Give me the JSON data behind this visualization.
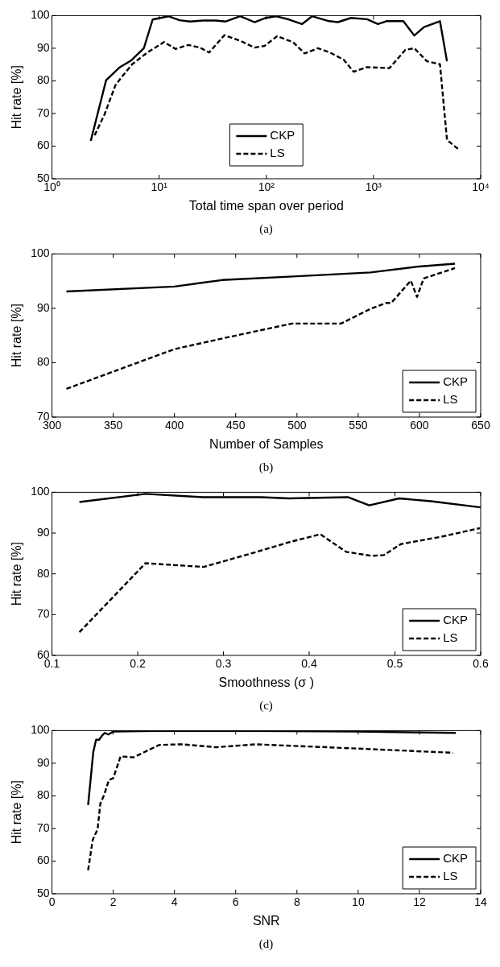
{
  "chart_data": [
    {
      "type": "line",
      "xlabel": "Total time span over period",
      "ylabel": "Hit rate [%]",
      "log": "x",
      "xlim": [
        1,
        10000
      ],
      "xticks": [
        {
          "value": 1,
          "label": "10⁰"
        },
        {
          "value": 10,
          "label": "10¹"
        },
        {
          "value": 100,
          "label": "10²"
        },
        {
          "value": 1000,
          "label": "10³"
        },
        {
          "value": 10000,
          "label": "10⁴"
        }
      ],
      "ylim": [
        50,
        100
      ],
      "yticks": [
        50,
        60,
        70,
        80,
        90,
        100
      ],
      "legend": "bottom",
      "annotations": [
        "(a)"
      ],
      "series": [
        {
          "name": "CKP",
          "color": "#000000",
          "line_style": "solid",
          "x": [
            2.3,
            3.2,
            4.3,
            5.5,
            7.2,
            8.7,
            12.2,
            15.5,
            19.4,
            25.7,
            33.7,
            41.9,
            57,
            77.6,
            99,
            123,
            163,
            215,
            267,
            386,
            465,
            617,
            870,
            1100,
            1320,
            1900,
            2400,
            2960,
            4170,
            4850
          ],
          "values": [
            61.6,
            80.2,
            84.2,
            86.3,
            90,
            98.8,
            99.8,
            98.6,
            98.2,
            98.5,
            98.5,
            98.2,
            99.8,
            98,
            99.3,
            99.8,
            98.8,
            97.4,
            99.8,
            98.3,
            98,
            99.3,
            98.9,
            97.4,
            98.3,
            98.3,
            93.9,
            96.5,
            98.3,
            86
          ]
        },
        {
          "name": "LS",
          "color": "#000000",
          "line_style": "dashed",
          "x": [
            2.5,
            3.1,
            3.9,
            4.4,
            5.6,
            7.7,
            11.1,
            14.2,
            18.8,
            24,
            29.3,
            40.6,
            57,
            77.6,
            96,
            126,
            177,
            228,
            303,
            386,
            526,
            653,
            863,
            1410,
            1980,
            2400,
            3160,
            4170,
            4850,
            6170
          ],
          "values": [
            63.3,
            69.8,
            78.6,
            80.9,
            85.1,
            88.6,
            91.9,
            89.8,
            91,
            90.2,
            88.7,
            94,
            92.3,
            90.2,
            90.7,
            93.7,
            91.9,
            88.4,
            90,
            88.8,
            86.5,
            82.8,
            84.2,
            83.9,
            89.5,
            90,
            86,
            85.1,
            61.9,
            59.1
          ]
        }
      ]
    },
    {
      "type": "line",
      "xlabel": "Number of Samples",
      "ylabel": "Hit rate [%]",
      "xlim": [
        300,
        650
      ],
      "xticks": [
        300,
        350,
        400,
        450,
        500,
        550,
        600,
        650
      ],
      "ylim": [
        70,
        100
      ],
      "yticks": [
        70,
        80,
        90,
        100
      ],
      "legend": "bottom right",
      "annotations": [
        "(b)"
      ],
      "series": [
        {
          "name": "CKP",
          "color": "#000000",
          "line_style": "solid",
          "x": [
            311.8,
            400,
            438.8,
            500,
            560,
            600,
            629
          ],
          "values": [
            93.1,
            94,
            95.2,
            95.9,
            96.6,
            97.7,
            98.2
          ]
        },
        {
          "name": "LS",
          "color": "#000000",
          "line_style": "dashed",
          "x": [
            311.8,
            400,
            442,
            496,
            536,
            560,
            573,
            577,
            593,
            598,
            603.5,
            629
          ],
          "values": [
            75.2,
            82.5,
            84.6,
            87.2,
            87.2,
            89.9,
            91,
            91,
            95.1,
            92.1,
            95.5,
            97.4
          ]
        }
      ]
    },
    {
      "type": "line",
      "xlabel": "Smoothness (σ )",
      "ylabel": "Hit rate [%]",
      "xlim": [
        0.1,
        0.6
      ],
      "xticks": [
        0.1,
        0.2,
        0.3,
        0.4,
        0.5,
        0.6
      ],
      "ylim": [
        60,
        100
      ],
      "yticks": [
        60,
        70,
        80,
        90,
        100
      ],
      "legend": "bottom right",
      "annotations": [
        "(c)"
      ],
      "series": [
        {
          "name": "CKP",
          "color": "#000000",
          "line_style": "solid",
          "x": [
            0.132,
            0.209,
            0.276,
            0.344,
            0.376,
            0.445,
            0.47,
            0.505,
            0.542,
            0.6
          ],
          "values": [
            97.6,
            99.6,
            98.8,
            98.8,
            98.5,
            98.8,
            96.8,
            98.5,
            97.8,
            96.3
          ]
        },
        {
          "name": "LS",
          "color": "#000000",
          "line_style": "dashed",
          "x": [
            0.132,
            0.209,
            0.277,
            0.334,
            0.379,
            0.413,
            0.443,
            0.473,
            0.487,
            0.507,
            0.554,
            0.599
          ],
          "values": [
            65.7,
            82.6,
            81.7,
            85.1,
            87.9,
            89.7,
            85.4,
            84.4,
            84.6,
            87.3,
            89.1,
            91.2
          ]
        }
      ]
    },
    {
      "type": "line",
      "xlabel": "SNR",
      "ylabel": "Hit rate [%]",
      "xlim": [
        0,
        14
      ],
      "xticks": [
        0,
        2,
        4,
        6,
        8,
        10,
        12,
        14
      ],
      "ylim": [
        50,
        100
      ],
      "yticks": [
        50,
        60,
        70,
        80,
        90,
        100
      ],
      "legend": "bottom right",
      "annotations": [
        "(d)"
      ],
      "series": [
        {
          "name": "CKP",
          "color": "#000000",
          "line_style": "solid",
          "x": [
            1.18,
            1.35,
            1.44,
            1.54,
            1.63,
            1.72,
            1.84,
            2.0,
            3.4,
            6.57,
            9.93,
            13.19
          ],
          "values": [
            77.2,
            93.5,
            97.2,
            97.2,
            98.4,
            99.3,
            98.8,
            99.7,
            99.9,
            99.9,
            99.7,
            99.3
          ]
        },
        {
          "name": "LS",
          "color": "#000000",
          "line_style": "dashed",
          "x": [
            1.18,
            1.33,
            1.49,
            1.58,
            1.7,
            1.86,
            2.0,
            2.24,
            2.66,
            3.5,
            4.24,
            5.36,
            6.66,
            8.99,
            13.1
          ],
          "values": [
            57.2,
            66.5,
            69.8,
            77.7,
            80.2,
            84.9,
            85.4,
            92.1,
            91.8,
            95.6,
            95.8,
            94.9,
            95.8,
            94.9,
            93.2
          ]
        }
      ]
    }
  ]
}
